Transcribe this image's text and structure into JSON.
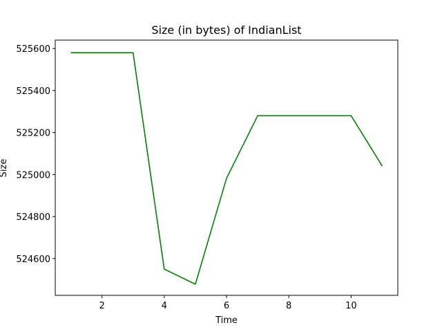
{
  "chart_data": {
    "type": "line",
    "title": "Size (in bytes) of IndianList",
    "xlabel": "Time",
    "ylabel": "Size",
    "xlim": [
      0.5,
      11.5
    ],
    "ylim": [
      524425,
      525640
    ],
    "xticks": [
      2,
      4,
      6,
      8,
      10
    ],
    "yticks": [
      524600,
      524800,
      525000,
      525200,
      525400,
      525600
    ],
    "grid": false,
    "series": [
      {
        "color": "#008000",
        "x": [
          1,
          2,
          3,
          4,
          5,
          6,
          7,
          8,
          9,
          10,
          11
        ],
        "y": [
          525580,
          525580,
          525580,
          524550,
          524478,
          524982,
          525280,
          525280,
          525280,
          525280,
          525040
        ]
      }
    ]
  }
}
